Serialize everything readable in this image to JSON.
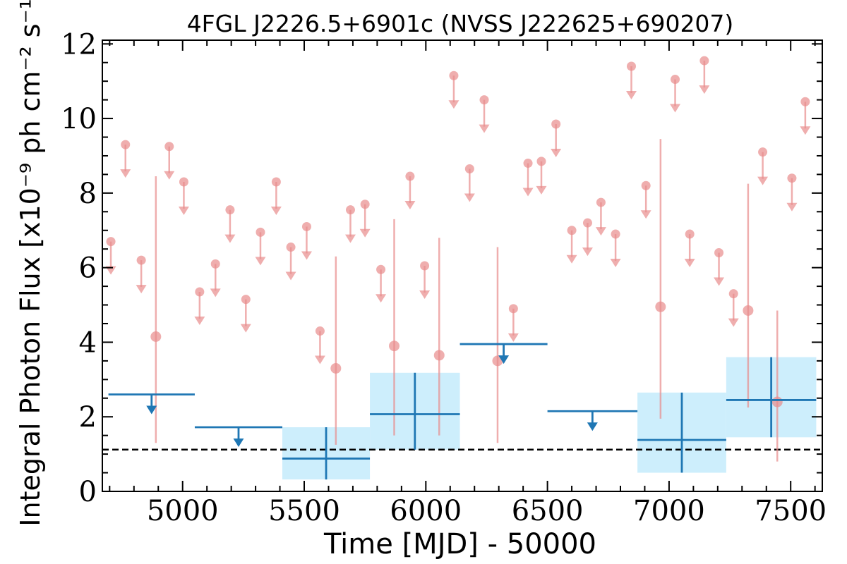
{
  "chart_data": {
    "type": "scatter",
    "title": "4FGL J2226.5+6901c (NVSS J222625+690207)",
    "xlabel": "Time [MJD] - 50000",
    "ylabel": "Integral Photon Flux [x10⁻⁹ ph cm⁻² s⁻¹]",
    "xlim": [
      4670,
      7630
    ],
    "ylim": [
      0,
      12.1
    ],
    "xticks": [
      5000,
      5500,
      6000,
      6500,
      7000,
      7500
    ],
    "yticks": [
      0,
      2,
      4,
      6,
      8,
      10,
      12
    ],
    "reference_level": 1.12,
    "colors": {
      "short_bins": "#e88c8c",
      "long_bins": "#1f77b4",
      "band_fill": "#cdeefc",
      "reference": "#000000"
    },
    "series": [
      {
        "style": "upper_limits",
        "points": [
          {
            "x": 4705,
            "y": 6.7
          },
          {
            "x": 4765,
            "y": 9.3
          },
          {
            "x": 4830,
            "y": 6.2
          },
          {
            "x": 4945,
            "y": 9.25
          },
          {
            "x": 5005,
            "y": 8.3
          },
          {
            "x": 5070,
            "y": 5.35
          },
          {
            "x": 5135,
            "y": 6.1
          },
          {
            "x": 5195,
            "y": 7.55
          },
          {
            "x": 5260,
            "y": 5.15
          },
          {
            "x": 5320,
            "y": 6.95
          },
          {
            "x": 5385,
            "y": 8.3
          },
          {
            "x": 5445,
            "y": 6.55
          },
          {
            "x": 5510,
            "y": 7.1
          },
          {
            "x": 5565,
            "y": 4.3
          },
          {
            "x": 5690,
            "y": 7.55
          },
          {
            "x": 5750,
            "y": 7.7
          },
          {
            "x": 5815,
            "y": 5.95
          },
          {
            "x": 5935,
            "y": 8.45
          },
          {
            "x": 5995,
            "y": 6.05
          },
          {
            "x": 6115,
            "y": 11.15
          },
          {
            "x": 6180,
            "y": 8.65
          },
          {
            "x": 6240,
            "y": 10.5
          },
          {
            "x": 6360,
            "y": 4.9
          },
          {
            "x": 6420,
            "y": 8.8
          },
          {
            "x": 6475,
            "y": 8.85
          },
          {
            "x": 6535,
            "y": 9.85
          },
          {
            "x": 6600,
            "y": 7.0
          },
          {
            "x": 6665,
            "y": 7.2
          },
          {
            "x": 6720,
            "y": 7.75
          },
          {
            "x": 6780,
            "y": 6.9
          },
          {
            "x": 6845,
            "y": 11.4
          },
          {
            "x": 6905,
            "y": 8.2
          },
          {
            "x": 7025,
            "y": 11.05
          },
          {
            "x": 7085,
            "y": 6.9
          },
          {
            "x": 7145,
            "y": 11.55
          },
          {
            "x": 7205,
            "y": 6.4
          },
          {
            "x": 7265,
            "y": 5.3
          },
          {
            "x": 7385,
            "y": 9.1
          },
          {
            "x": 7505,
            "y": 8.4
          },
          {
            "x": 7560,
            "y": 10.45
          }
        ]
      },
      {
        "style": "detections",
        "points": [
          {
            "x": 4890,
            "y": 4.15,
            "ylo": 1.3,
            "yhi": 8.45
          },
          {
            "x": 5630,
            "y": 3.3,
            "ylo": 1.25,
            "yhi": 6.3
          },
          {
            "x": 5870,
            "y": 3.9,
            "ylo": 1.5,
            "yhi": 7.3
          },
          {
            "x": 6055,
            "y": 3.65,
            "ylo": 1.5,
            "yhi": 6.8
          },
          {
            "x": 6295,
            "y": 3.5,
            "ylo": 1.3,
            "yhi": 6.55
          },
          {
            "x": 6965,
            "y": 4.95,
            "ylo": 1.95,
            "yhi": 9.45
          },
          {
            "x": 7325,
            "y": 4.85,
            "ylo": 2.25,
            "yhi": 8.25
          },
          {
            "x": 7445,
            "y": 2.4,
            "ylo": 0.8,
            "yhi": 4.85
          }
        ]
      },
      {
        "style": "upper_limits",
        "bins": [
          {
            "x0": 4695,
            "x1": 5050,
            "y": 2.6
          },
          {
            "x0": 5050,
            "x1": 5410,
            "y": 1.72
          },
          {
            "x0": 6140,
            "x1": 6500,
            "y": 3.95
          },
          {
            "x0": 6500,
            "x1": 6870,
            "y": 2.15
          }
        ]
      },
      {
        "style": "detections",
        "bins": [
          {
            "x0": 5410,
            "x1": 5770,
            "y": 0.88,
            "ylo": 0.32,
            "yhi": 1.72
          },
          {
            "x0": 5770,
            "x1": 6140,
            "y": 2.07,
            "ylo": 1.12,
            "yhi": 3.18
          },
          {
            "x0": 6870,
            "x1": 7235,
            "y": 1.38,
            "ylo": 0.5,
            "yhi": 2.65
          },
          {
            "x0": 7235,
            "x1": 7605,
            "y": 2.45,
            "ylo": 1.45,
            "yhi": 3.6
          }
        ]
      }
    ]
  }
}
